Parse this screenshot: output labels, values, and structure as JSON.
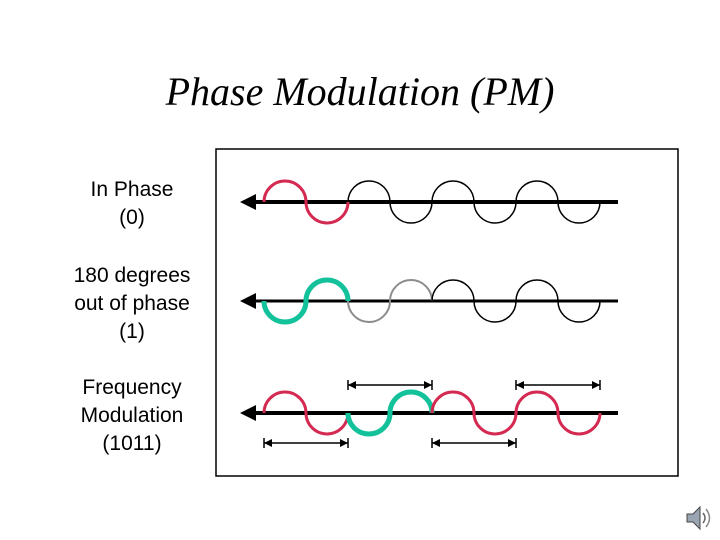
{
  "title": "Phase Modulation (PM)",
  "rows": [
    {
      "label_lines": [
        "In Phase",
        "(0)"
      ]
    },
    {
      "label_lines": [
        "180 degrees",
        "out of phase",
        "(1)"
      ]
    },
    {
      "label_lines": [
        "Frequency",
        "Modulation",
        "(1011)"
      ]
    }
  ],
  "colors": {
    "highlight_red": "#d42a52",
    "highlight_green": "#13c29a",
    "dimmed_gray": "#8c8c8c",
    "wave_black": "#000000"
  },
  "icons": [
    "speaker-icon"
  ]
}
